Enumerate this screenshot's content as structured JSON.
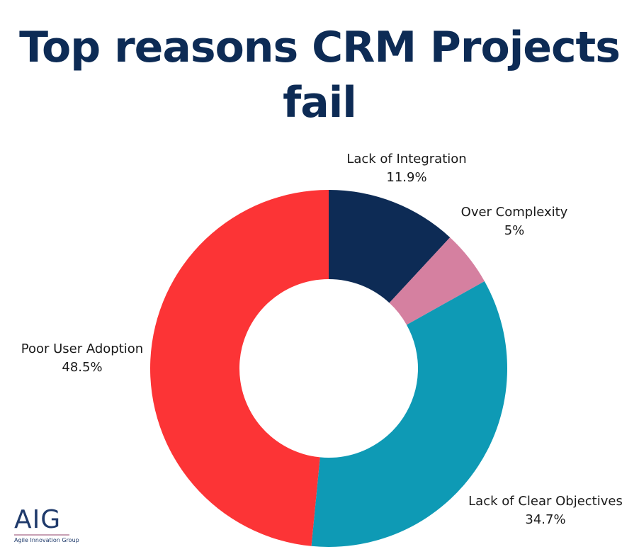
{
  "chart_data": {
    "type": "pie",
    "style": "donut",
    "title": "Top reasons CRM Projects fail",
    "slices": [
      {
        "label": "Lack of Integration",
        "value": 11.9,
        "value_label": "11.9%",
        "color": "#0d2b55"
      },
      {
        "label": "Over Complexity",
        "value": 5,
        "value_label": "5%",
        "color": "#d580a0"
      },
      {
        "label": "Lack of Clear Objectives",
        "value": 34.7,
        "value_label": "34.7%",
        "color": "#0e9ab5"
      },
      {
        "label": "Poor User Adoption",
        "value": 48.5,
        "value_label": "48.5%",
        "color": "#fc3436"
      }
    ]
  },
  "logo": {
    "mark": "AIG",
    "subtitle": "Agile Innovation Group"
  }
}
